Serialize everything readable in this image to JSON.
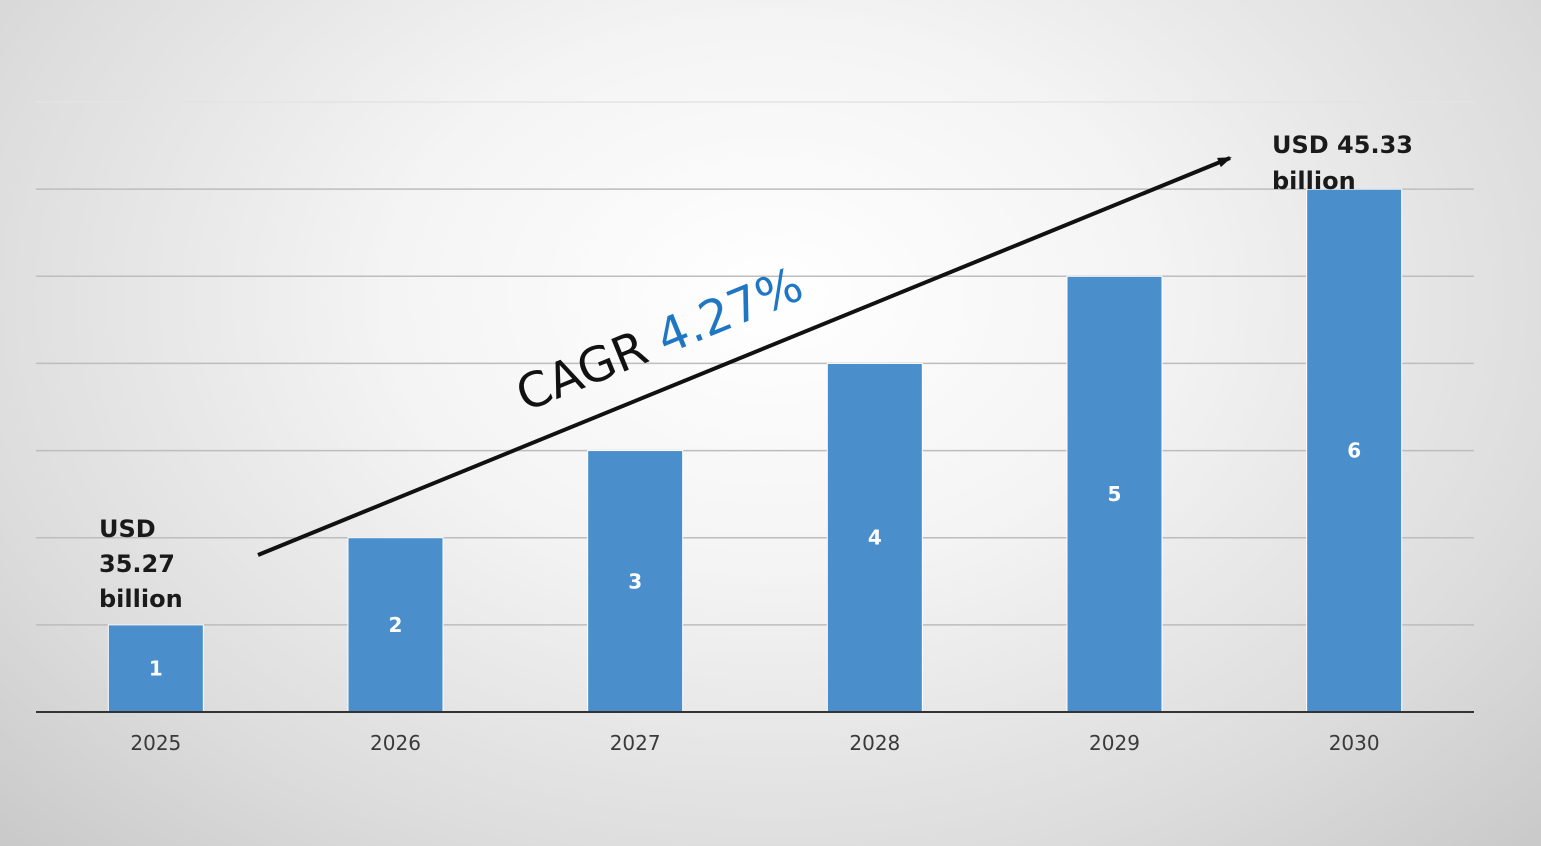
{
  "chart_data": {
    "type": "bar",
    "categories": [
      "2025",
      "2026",
      "2027",
      "2028",
      "2029",
      "2030"
    ],
    "values": [
      1,
      2,
      3,
      4,
      5,
      6
    ],
    "data_labels": [
      "1",
      "2",
      "3",
      "4",
      "5",
      "6"
    ],
    "ylim": [
      0,
      7
    ],
    "grid": true,
    "bar_color": "#4a8fcc",
    "title": "",
    "xlabel": "",
    "ylabel": ""
  },
  "annotations": {
    "start_lines": [
      "USD",
      "35.27",
      "billion"
    ],
    "end_lines": [
      "USD 45.33",
      "billion"
    ],
    "cagr_prefix": "CAGR ",
    "cagr_value": "4.27%",
    "cagr_value_color": "#1f77c4"
  }
}
